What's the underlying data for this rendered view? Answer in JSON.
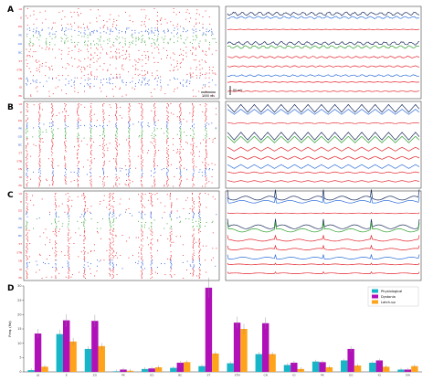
{
  "panels": {
    "a": "A",
    "b": "B",
    "c": "C",
    "d": "D"
  },
  "raster": {
    "neuron_labels": [
      "L6",
      "E",
      "ZG",
      "PK",
      "GO",
      "BC",
      "ST",
      "STN",
      "CN",
      "IO",
      "PK"
    ],
    "scale_bar": "1000 ms",
    "trace_scale": "60 mV"
  },
  "colors": {
    "excitatory": "#e8202a",
    "inhibitory": "#1f4fd6",
    "green_population": "#2ca02c",
    "trace_dark": "#1a2b5c",
    "trace_blue": "#2e6fd9",
    "trace_green": "#2ca02c",
    "trace_red": "#e3262e",
    "physiological": "#17b5c8",
    "dystonia": "#b010b8",
    "latchup": "#ffa31a"
  },
  "chart_data": {
    "type": "bar",
    "ylabel": "Freq. (Hz)",
    "ylim": [
      0,
      30
    ],
    "yticks": [
      0,
      5,
      10,
      15,
      20,
      25,
      30
    ],
    "categories": [
      "L6",
      "E",
      "ZG",
      "PK",
      "GO",
      "BC",
      "ST",
      "STN",
      "CN",
      "IO",
      "PK",
      "GO",
      "IO",
      "DN"
    ],
    "legend_position": "top-right",
    "series": [
      {
        "name": "Physiological",
        "color": "#17b5c8",
        "values": [
          0.6,
          13.2,
          8.0,
          0.2,
          1.0,
          1.4,
          2.0,
          3.0,
          6.2,
          2.4,
          3.6,
          4.0,
          3.2,
          0.8
        ]
      },
      {
        "name": "Dystonia",
        "color": "#b010b8",
        "values": [
          13.4,
          18.0,
          17.8,
          0.8,
          1.2,
          3.2,
          29.4,
          17.2,
          17.0,
          3.2,
          3.4,
          8.0,
          4.0,
          0.8
        ]
      },
      {
        "name": "Latch-up",
        "color": "#ffa31a",
        "values": [
          1.8,
          10.6,
          9.0,
          0.4,
          1.6,
          3.4,
          6.4,
          15.0,
          6.2,
          1.0,
          1.6,
          2.2,
          1.8,
          2.0
        ]
      }
    ]
  }
}
